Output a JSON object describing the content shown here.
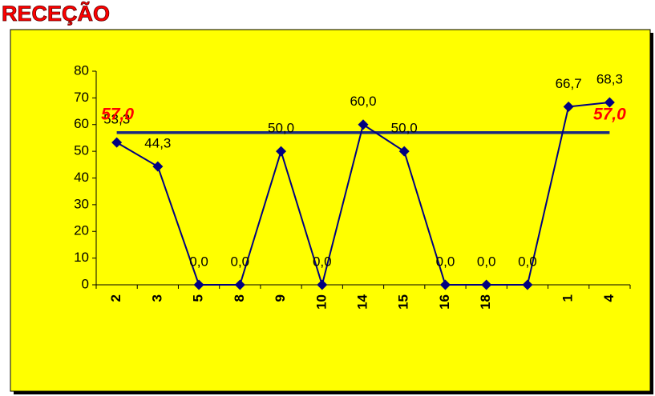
{
  "chart_data": {
    "type": "line",
    "title": "RECEÇÃO",
    "categories": [
      "2",
      "3",
      "5",
      "8",
      "9",
      "10",
      "14",
      "15",
      "16",
      "18",
      null,
      "1",
      "4"
    ],
    "series": [
      {
        "color": "#000080",
        "values": [
          53.3,
          44.3,
          0,
          0,
          50,
          0,
          60,
          50,
          0,
          0,
          0,
          66.7,
          68.3
        ],
        "value_labels": [
          "53,3",
          "44,3",
          "0,0",
          "0,0",
          "50,0",
          "0,0",
          "60,0",
          "50,0",
          "0,0",
          "0,0",
          "0,0",
          "66,7",
          "68,3"
        ]
      }
    ],
    "reference": {
      "value": 57,
      "label": "57,0",
      "color": "#1a2a80",
      "label_color": "#ff0000"
    },
    "ylim": [
      0,
      80
    ],
    "yticks": [
      0,
      10,
      20,
      30,
      40,
      50,
      60,
      70,
      80
    ],
    "background": "#ffff00",
    "grid": false
  }
}
